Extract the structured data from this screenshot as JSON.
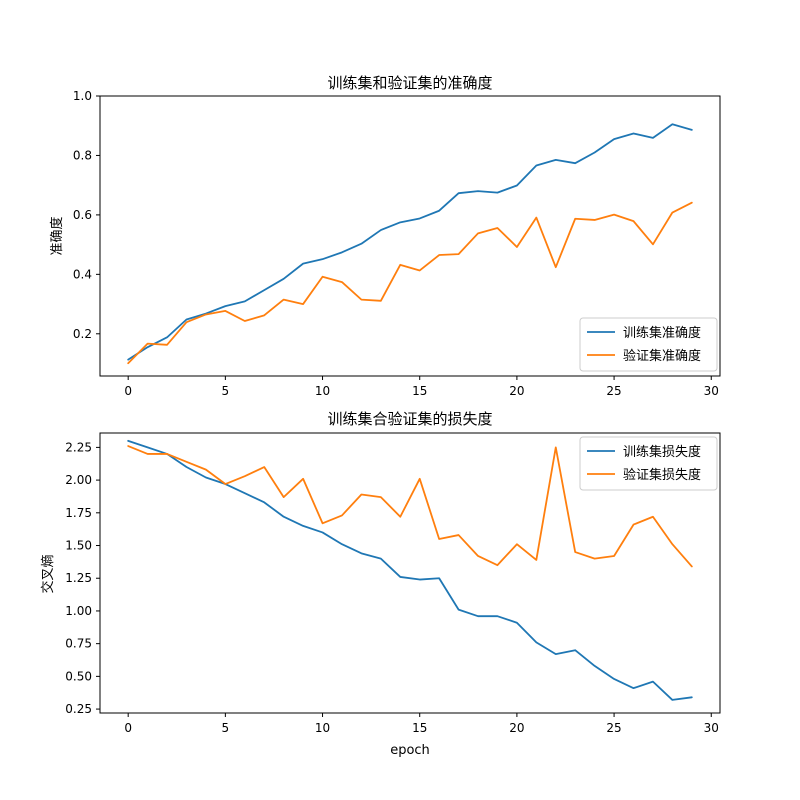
{
  "chart_data": [
    {
      "type": "line",
      "title": "训练集和验证集的准确度",
      "xlabel": "",
      "ylabel": "准确度",
      "xlim": [
        -1.45,
        30.45
      ],
      "ylim": [
        0.058,
        1.0
      ],
      "xticks": [
        0,
        5,
        10,
        15,
        20,
        25,
        30
      ],
      "yticks": [
        0.2,
        0.4,
        0.6,
        0.8,
        1.0
      ],
      "ytick_decimals": 1,
      "grid": false,
      "legend_position": "lower right",
      "x": [
        0,
        1,
        2,
        3,
        4,
        5,
        6,
        7,
        8,
        9,
        10,
        11,
        12,
        13,
        14,
        15,
        16,
        17,
        18,
        19,
        20,
        21,
        22,
        23,
        24,
        25,
        26,
        27,
        28,
        29
      ],
      "series": [
        {
          "name": "训练集准确度",
          "color": "#1f77b4",
          "values": [
            0.113,
            0.155,
            0.188,
            0.248,
            0.268,
            0.293,
            0.309,
            0.347,
            0.385,
            0.436,
            0.451,
            0.474,
            0.503,
            0.549,
            0.575,
            0.588,
            0.614,
            0.673,
            0.68,
            0.675,
            0.699,
            0.766,
            0.785,
            0.774,
            0.81,
            0.855,
            0.874,
            0.859,
            0.905,
            0.886
          ]
        },
        {
          "name": "验证集准确度",
          "color": "#ff7f0e",
          "values": [
            0.101,
            0.167,
            0.163,
            0.239,
            0.265,
            0.277,
            0.243,
            0.262,
            0.315,
            0.3,
            0.392,
            0.374,
            0.315,
            0.311,
            0.432,
            0.413,
            0.465,
            0.468,
            0.538,
            0.556,
            0.492,
            0.591,
            0.424,
            0.587,
            0.583,
            0.601,
            0.579,
            0.501,
            0.608,
            0.641
          ]
        }
      ]
    },
    {
      "type": "line",
      "title": "训练集合验证集的损失度",
      "xlabel": "epoch",
      "ylabel": "交叉熵",
      "xlim": [
        -1.45,
        30.45
      ],
      "ylim": [
        0.22,
        2.36
      ],
      "xticks": [
        0,
        5,
        10,
        15,
        20,
        25,
        30
      ],
      "yticks": [
        0.25,
        0.5,
        0.75,
        1.0,
        1.25,
        1.5,
        1.75,
        2.0,
        2.25
      ],
      "ytick_decimals": 2,
      "grid": false,
      "legend_position": "upper right",
      "x": [
        0,
        1,
        2,
        3,
        4,
        5,
        6,
        7,
        8,
        9,
        10,
        11,
        12,
        13,
        14,
        15,
        16,
        17,
        18,
        19,
        20,
        21,
        22,
        23,
        24,
        25,
        26,
        27,
        28,
        29
      ],
      "series": [
        {
          "name": "训练集损失度",
          "color": "#1f77b4",
          "values": [
            2.3,
            2.25,
            2.2,
            2.1,
            2.02,
            1.97,
            1.9,
            1.83,
            1.72,
            1.65,
            1.6,
            1.51,
            1.44,
            1.4,
            1.26,
            1.24,
            1.25,
            1.01,
            0.96,
            0.96,
            0.91,
            0.76,
            0.67,
            0.7,
            0.58,
            0.48,
            0.41,
            0.46,
            0.32,
            0.34
          ]
        },
        {
          "name": "验证集损失度",
          "color": "#ff7f0e",
          "values": [
            2.26,
            2.2,
            2.2,
            2.14,
            2.08,
            1.97,
            2.03,
            2.1,
            1.87,
            2.01,
            1.67,
            1.73,
            1.89,
            1.87,
            1.72,
            2.01,
            1.55,
            1.58,
            1.42,
            1.35,
            1.51,
            1.39,
            2.25,
            1.45,
            1.4,
            1.42,
            1.66,
            1.72,
            1.51,
            1.34
          ]
        }
      ]
    }
  ]
}
